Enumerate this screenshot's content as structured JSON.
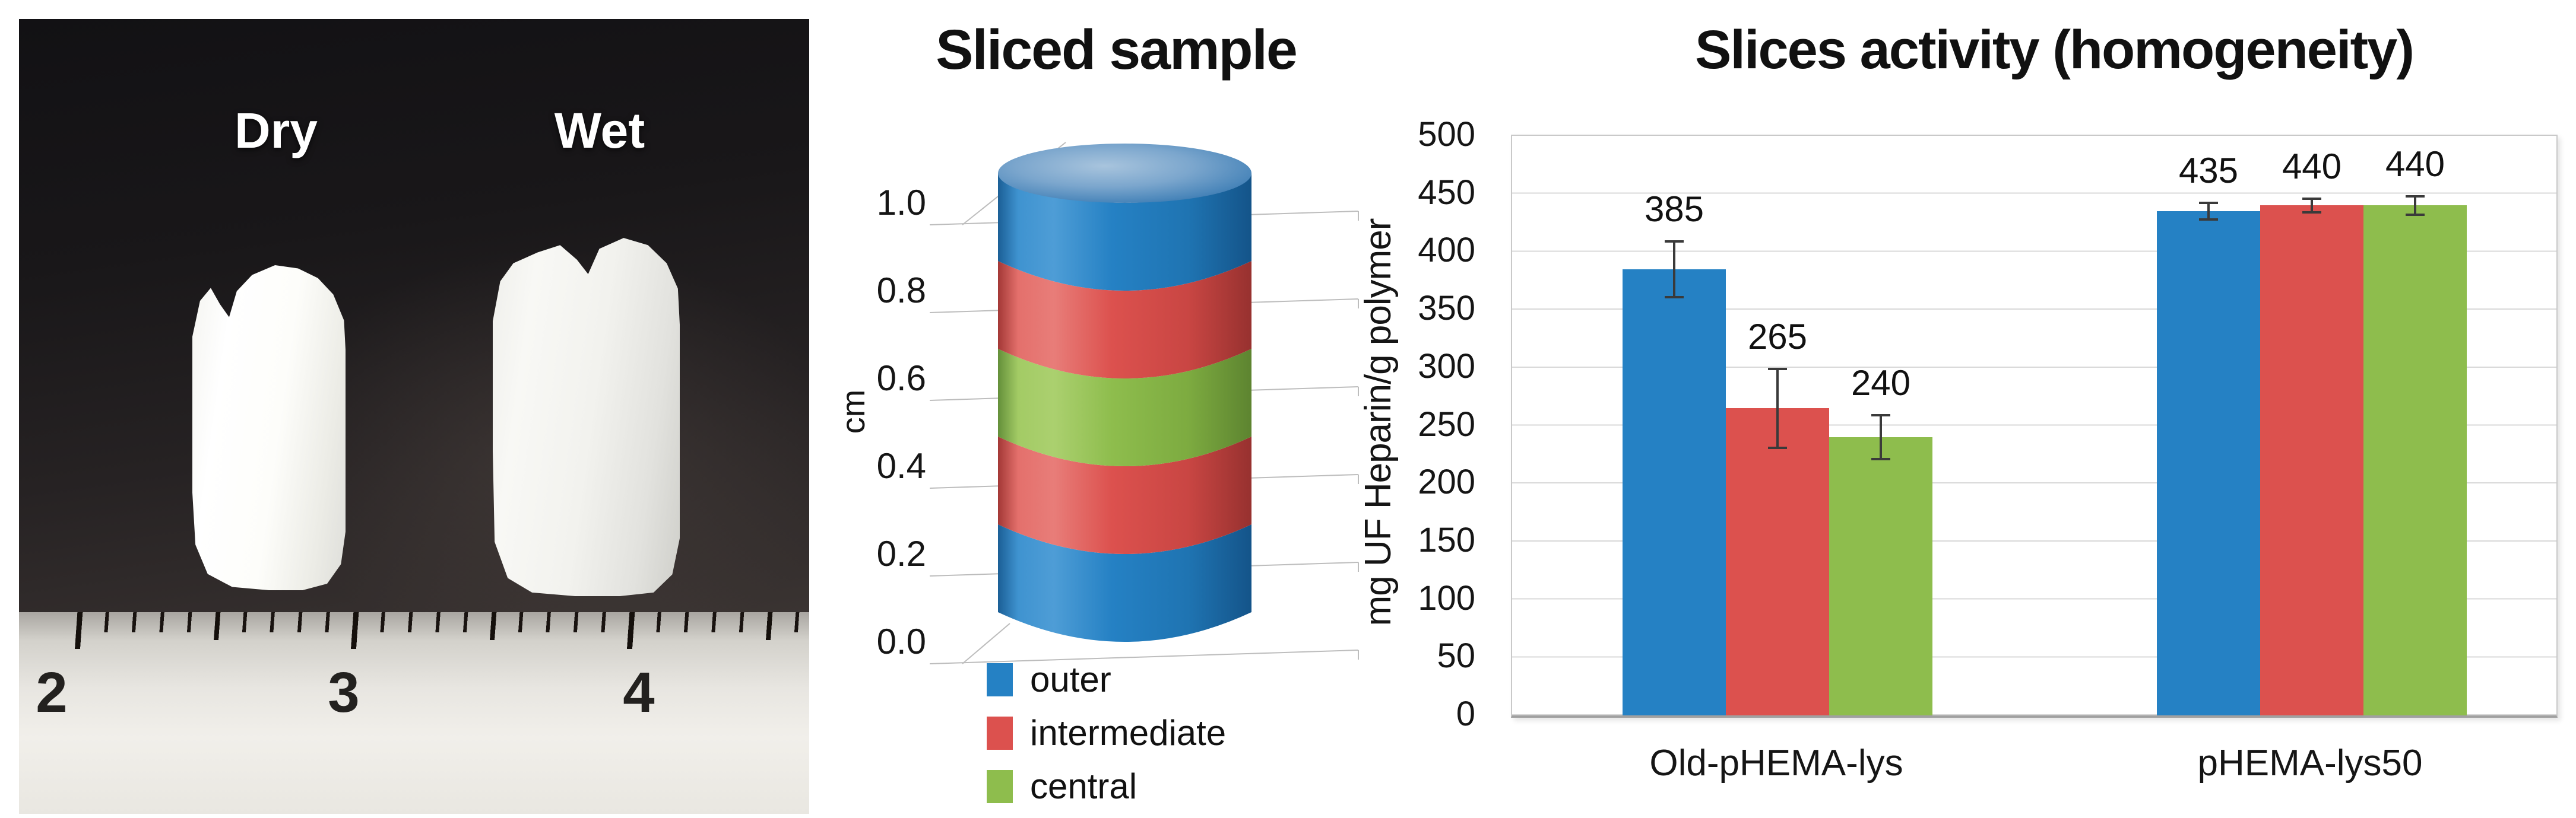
{
  "photo": {
    "dry_label": "Dry",
    "wet_label": "Wet",
    "ruler_numbers": [
      "2",
      "3",
      "4"
    ]
  },
  "sliced": {
    "title": "Sliced sample",
    "unit": "cm",
    "ticks": [
      "1.0",
      "0.8",
      "0.6",
      "0.4",
      "0.2",
      "0.0"
    ],
    "legend": [
      {
        "label": "outer"
      },
      {
        "label": "intermediate"
      },
      {
        "label": "central"
      }
    ]
  },
  "bar": {
    "title": "Slices activity (homogeneity)",
    "y_label": "mg UF Heparin/g polymer",
    "y_ticks": [
      "500",
      "450",
      "400",
      "350",
      "300",
      "250",
      "200",
      "150",
      "100",
      "50",
      "0"
    ],
    "categories": [
      "Old-pHEMA-lys",
      "pHEMA-lys50"
    ]
  },
  "colors": {
    "outer": "#2581c4",
    "intermediate": "#dc514e",
    "central": "#8ebd4d",
    "error": "#3a3a3a",
    "gridline": "#d8d8d8"
  },
  "chart_data": [
    {
      "type": "area",
      "subtype": "3d-stacked-cylinder",
      "title": "Sliced sample",
      "ylabel": "cm",
      "ylim": [
        0.0,
        1.0
      ],
      "ytick_step": 0.2,
      "slices": [
        {
          "name": "outer",
          "from": 0.0,
          "to": 0.2,
          "color": "#2581c4"
        },
        {
          "name": "intermediate",
          "from": 0.2,
          "to": 0.4,
          "color": "#dc514e"
        },
        {
          "name": "central",
          "from": 0.4,
          "to": 0.6,
          "color": "#8ebd4d"
        },
        {
          "name": "intermediate",
          "from": 0.6,
          "to": 0.8,
          "color": "#dc514e"
        },
        {
          "name": "outer",
          "from": 0.8,
          "to": 1.0,
          "color": "#2581c4"
        }
      ],
      "legend": [
        "outer",
        "intermediate",
        "central"
      ],
      "legend_position": "bottom-left"
    },
    {
      "type": "bar",
      "title": "Slices activity (homogeneity)",
      "ylabel": "mg UF Heparin/g polymer",
      "ylim": [
        0,
        500
      ],
      "ytick_step": 50,
      "grid": true,
      "categories": [
        "Old-pHEMA-lys",
        "pHEMA-lys50"
      ],
      "series": [
        {
          "name": "outer",
          "color": "#2581c4",
          "values": [
            385,
            435
          ],
          "errors": [
            25,
            8
          ]
        },
        {
          "name": "intermediate",
          "color": "#dc514e",
          "values": [
            265,
            440
          ],
          "errors": [
            35,
            7
          ]
        },
        {
          "name": "central",
          "color": "#8ebd4d",
          "values": [
            240,
            440
          ],
          "errors": [
            20,
            9
          ]
        }
      ],
      "bar_value_labels_shown": true,
      "legend_position": "none"
    }
  ]
}
